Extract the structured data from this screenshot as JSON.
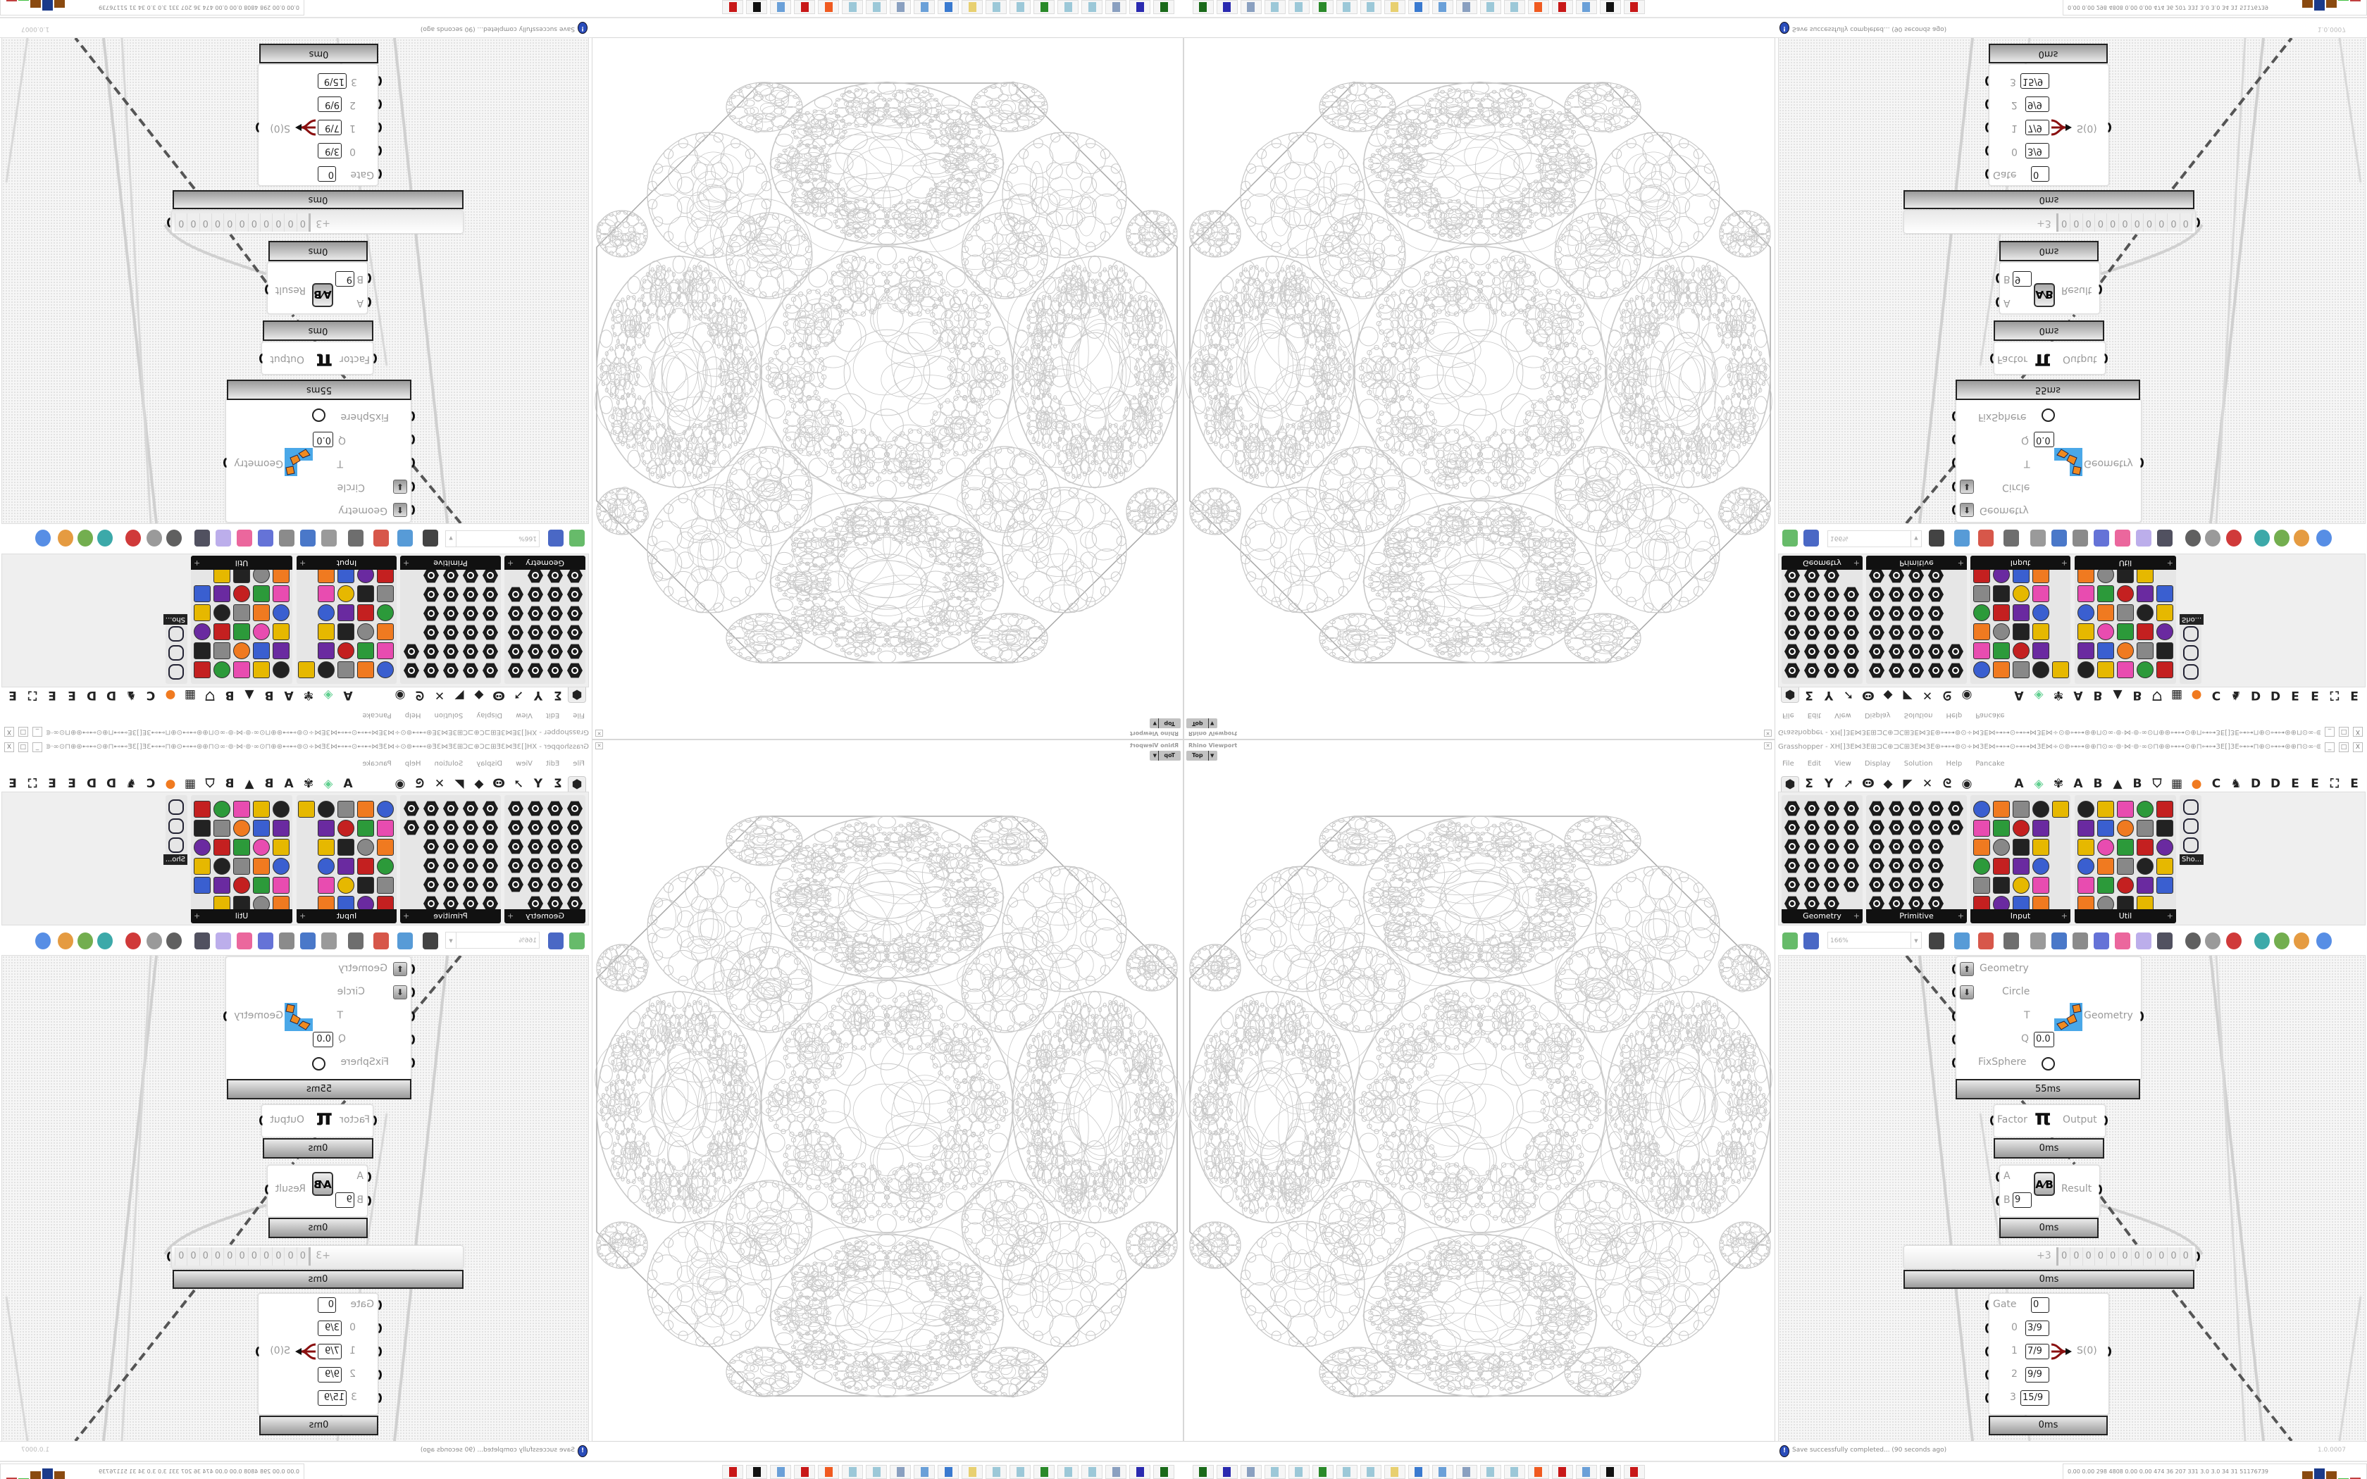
{
  "viewport": {
    "title": "Rhino Viewport",
    "view_label": "Top",
    "dropdown_icon": "chevron-down-icon",
    "close_icon": "close-icon",
    "line_color": "#c8c8c8",
    "outline_color": "#a8a8a8"
  },
  "grasshopper": {
    "title": "Grasshopper - XH[]3E⋈3E⊞⊐C⊕⊐C⊞3E⋈3E⊛⊶⊶⊚⊙÷⋈3E⋈⊶⊶⊙⊶⊶⋈3E⋈÷⊙⊚⊶⊶⊛⊕⊓⊙∞·⊚·⋈·⊚·∞⊙⊓⊕⊛⊶⊶⊙⊕⊓⊶⊶3E[]3E⊶⊶⊓⊕⊙⊶⊶⊛⊕⊓⊙∞·⊚·⋈·⊚·∞⊙⊓⊕⊛⊶⊶⊚⊙÷⋈3E⋈⊶⊶⊙...",
    "window_buttons": {
      "minimize": "_",
      "maximize": "□",
      "close": "X"
    },
    "menu": [
      "File",
      "Edit",
      "View",
      "Display",
      "Solution",
      "Help",
      "Pancake"
    ],
    "tabs": [
      {
        "label": "⬢",
        "icon": "params-tab-icon",
        "selected": true
      },
      {
        "label": "Σ",
        "icon": "maths-tab-icon"
      },
      {
        "label": "Y",
        "icon": "sets-tab-icon"
      },
      {
        "label": "➚",
        "icon": "vector-tab-icon"
      },
      {
        "label": "Ꙫ",
        "icon": "curve-tab-icon"
      },
      {
        "label": "◆",
        "icon": "surface-tab-icon"
      },
      {
        "label": "◤",
        "icon": "mesh-tab-icon"
      },
      {
        "label": "✕",
        "icon": "intersect-tab-icon"
      },
      {
        "label": "ᘓ",
        "icon": "transform-tab-icon"
      },
      {
        "label": "◉",
        "icon": "display-tab-icon"
      },
      {
        "label": "A",
        "icon": "letter-tab-icon"
      },
      {
        "label": "◈",
        "icon": "crystal-tab-icon",
        "color": "#5fcf8f"
      },
      {
        "label": "✾",
        "icon": "plugin-tab-icon"
      },
      {
        "label": "A",
        "icon": "letter-tab-icon"
      },
      {
        "label": "B",
        "icon": "letter-tab-icon"
      },
      {
        "label": "▲",
        "icon": "terrain-tab-icon"
      },
      {
        "label": "B",
        "icon": "letter-tab-icon"
      },
      {
        "label": "⛉",
        "icon": "shield-tab-icon"
      },
      {
        "label": "▦",
        "icon": "grid-tab-icon"
      },
      {
        "label": "●",
        "icon": "orange-circle-tab-icon",
        "color": "#f07a20"
      },
      {
        "label": "C",
        "icon": "letter-tab-icon"
      },
      {
        "label": "♞",
        "icon": "bird-tab-icon"
      },
      {
        "label": "D",
        "icon": "letter-tab-icon"
      },
      {
        "label": "D",
        "icon": "letter-tab-icon"
      },
      {
        "label": "E",
        "icon": "letter-tab-icon"
      },
      {
        "label": "E",
        "icon": "letter-tab-icon"
      },
      {
        "label": "⛶",
        "icon": "dotted-square-tab-icon"
      },
      {
        "label": "E",
        "icon": "letter-tab-icon"
      }
    ],
    "palette": [
      {
        "label": "Geometry",
        "style": "hex",
        "rows": [
          4,
          4,
          4,
          4,
          4,
          3
        ]
      },
      {
        "label": "Primitive",
        "style": "hex",
        "rows": [
          5,
          5,
          4,
          4,
          4,
          4
        ]
      },
      {
        "label": "Input",
        "style": "mixed",
        "rows": [
          5,
          4,
          4,
          4,
          4,
          4
        ]
      },
      {
        "label": "Util",
        "style": "mixed",
        "rows": [
          5,
          5,
          5,
          5,
          5,
          4
        ]
      }
    ],
    "palette_overflow_label": "Sho...",
    "panel_expand_icon": "+",
    "icon_colors": [
      "#222222",
      "#e6b800",
      "#e84cb0",
      "#2c9a3a",
      "#c42020",
      "#6a2aa0",
      "#3a5fd0",
      "#f07a20",
      "#888888"
    ],
    "toolbar": {
      "zoom": "166%",
      "icons": [
        "open-file-icon",
        "save-file-icon",
        "zoom-extents-icon",
        "preview-eye-icon",
        "sketch-icon",
        "bake-icon",
        "email-icon",
        "gha-icon",
        "render-icon",
        "search-icon",
        "package-icon",
        "bulb-icon",
        "wire-cross-icon",
        "preview-shaded-icon",
        "wireframe-icon",
        "red-shape-icon",
        "teal-shape-icon",
        "green-shape-icon",
        "orange-sphere-icon",
        "blue-sphere-icon"
      ]
    },
    "components": {
      "geometry": {
        "inputs": [
          "Geometry",
          "Circle",
          "T",
          "Q",
          "FixSphere"
        ],
        "q_value": "0.0",
        "output": "Geometry",
        "time": "55ms"
      },
      "pi": {
        "input": "Factor",
        "output": "Output",
        "symbol": "π",
        "time": "0ms"
      },
      "division": {
        "input_a": "A",
        "input_b": "B",
        "b_value": "9",
        "output": "Result",
        "time": "0ms"
      },
      "slider": {
        "prefix": "+3",
        "digits": [
          "0",
          "0",
          "0",
          "0",
          "0",
          "0",
          "0",
          "0",
          "0",
          "0",
          "0"
        ],
        "time": "0ms"
      },
      "stream_filter": {
        "gate_label": "Gate",
        "gate_value": "0",
        "inputs": [
          {
            "label": "0",
            "value": "3/9"
          },
          {
            "label": "1",
            "value": "7/9"
          },
          {
            "label": "2",
            "value": "9/9"
          },
          {
            "label": "3",
            "value": "15/9"
          }
        ],
        "output": "S(0)",
        "time": "0ms"
      }
    },
    "status": {
      "message": "Save successfully completed... (90 seconds ago)",
      "version": "1.0.0007",
      "icon": "info-icon"
    }
  },
  "taskbar": {
    "icons": [
      {
        "name": "utility-icon",
        "color": "#1a6a1a"
      },
      {
        "name": "floppy-64-icon",
        "color": "#2a2ab0"
      },
      {
        "name": "document-icon",
        "color": "#8aa0c0"
      },
      {
        "name": "notepad-icon",
        "color": "#9cc8d8"
      },
      {
        "name": "notepad-icon",
        "color": "#9cc8d8"
      },
      {
        "name": "monitor-icon",
        "color": "#2a8a2a"
      },
      {
        "name": "notepad-icon",
        "color": "#9cc8d8"
      },
      {
        "name": "notepad-icon",
        "color": "#9cc8d8"
      },
      {
        "name": "folder-icon",
        "color": "#e8d070"
      },
      {
        "name": "control-panel-icon",
        "color": "#3a7ad0"
      },
      {
        "name": "calculator-icon",
        "color": "#6aa0d8"
      },
      {
        "name": "document-icon",
        "color": "#8aa0c0"
      },
      {
        "name": "notepad-icon",
        "color": "#9cc8d8"
      },
      {
        "name": "notepad-icon",
        "color": "#9cc8d8"
      },
      {
        "name": "firefox-icon",
        "color": "#f05a20"
      },
      {
        "name": "red-app-icon",
        "color": "#c81818"
      },
      {
        "name": "calculator-icon",
        "color": "#6aa0d8"
      },
      {
        "name": "black-app-icon",
        "color": "#111111"
      },
      {
        "name": "red-app-icon",
        "color": "#c81818"
      }
    ],
    "stats": "0.00 0.00 298 4808 0.00 0.00 474 36 207 331 3.0 3.0 34 31 51176739",
    "meter_colors": [
      "#f0f060",
      "#f0f060",
      "#f0f060",
      "#8a4a10",
      "#1a3a8a",
      "#8a4a10",
      "#40c040",
      "#c04040"
    ],
    "meter_levels": [
      0.05,
      0.05,
      0.05,
      0.55,
      0.75,
      0.55,
      0.08,
      0.15
    ]
  }
}
